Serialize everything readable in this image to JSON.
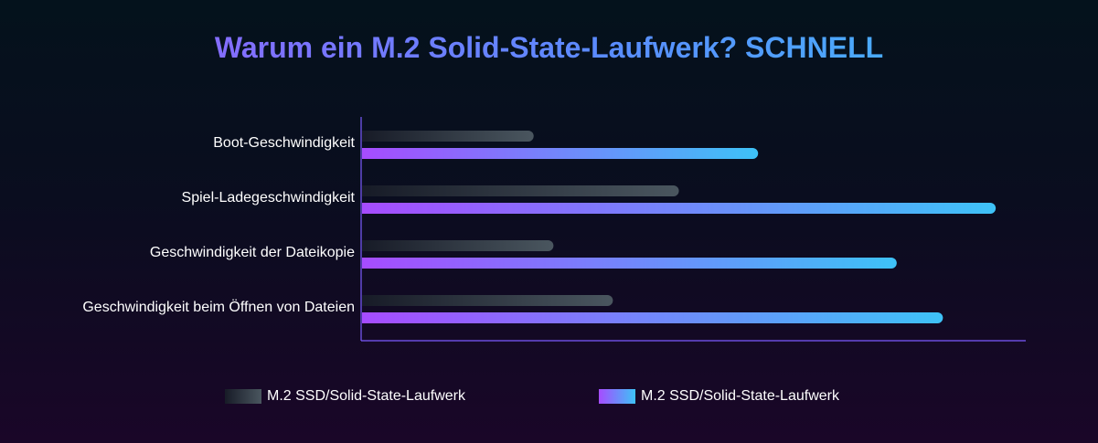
{
  "chart_data": {
    "type": "bar",
    "orientation": "horizontal",
    "title": "Warum ein M.2 Solid-State-Laufwerk? SCHNELL",
    "categories": [
      "Boot-Geschwindigkeit",
      "Spiel-Ladegeschwindigkeit",
      "Geschwindigkeit der Dateikopie",
      "Geschwindigkeit beim Öffnen von Dateien"
    ],
    "series": [
      {
        "name": "M.2 SSD/Solid-State-Laufwerk",
        "values": [
          26,
          48,
          29,
          38
        ]
      },
      {
        "name": "M.2 SSD/Solid-State-Laufwerk",
        "values": [
          60,
          96,
          81,
          88
        ]
      }
    ],
    "xlim": [
      0,
      100
    ],
    "grid": false,
    "legend_position": "bottom",
    "colors": {
      "series_a_start": "#171b27",
      "series_a_end": "#4a565f",
      "series_b_start": "#a64cff",
      "series_b_end": "#3ec2f7",
      "axis": "#7b5cff",
      "label": "#ffffff"
    }
  }
}
